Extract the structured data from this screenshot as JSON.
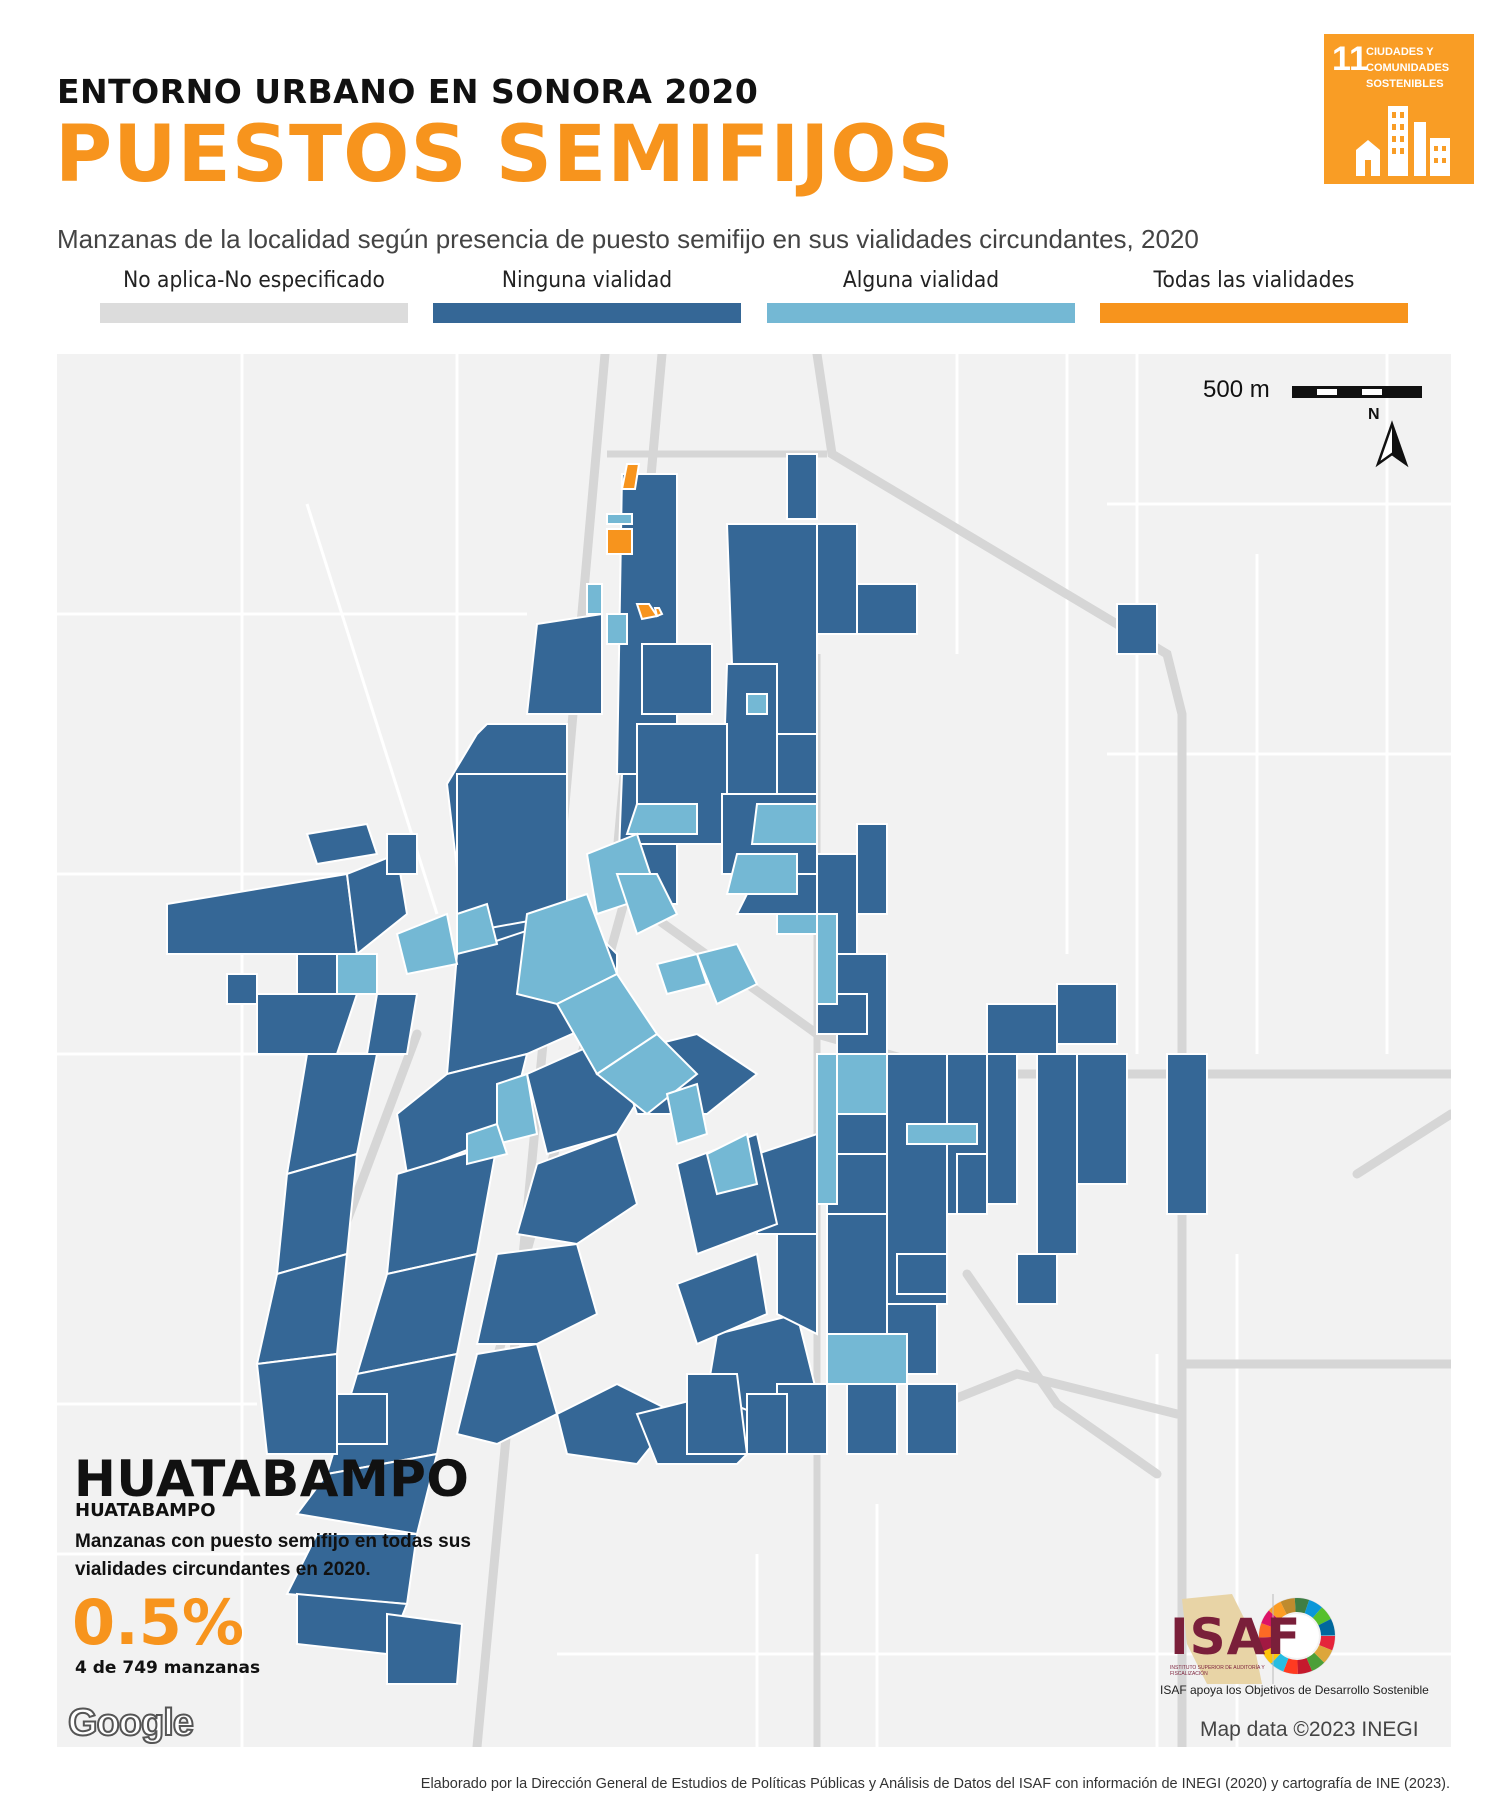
{
  "header": {
    "kicker": "ENTORNO URBANO EN SONORA 2020",
    "title": "PUESTOS SEMIFIJOS",
    "subtitle": "Manzanas de la localidad según presencia de puesto semifijo en sus vialidades circundantes, 2020"
  },
  "sdg_badge": {
    "number": "11",
    "text": "CIUDADES Y COMUNIDADES SOSTENIBLES",
    "color": "#f99d25"
  },
  "legend": [
    {
      "label": "No aplica-No especificado",
      "color": "#dcdcdc"
    },
    {
      "label": "Ninguna vialidad",
      "color": "#356796"
    },
    {
      "label": "Alguna vialidad",
      "color": "#74b8d4"
    },
    {
      "label": "Todas las vialidades",
      "color": "#f7941d"
    }
  ],
  "map": {
    "scale_label": "500 m",
    "north_label": "N",
    "attribution": "Map data ©2023 INEGI",
    "google_logo": "Google"
  },
  "summary": {
    "localidad": "HUATABAMPO",
    "municipio": "HUATABAMPO",
    "indicator": "Manzanas con puesto semifijo en todas sus vialidades circundantes en 2020.",
    "percentage": "0.5%",
    "count_text": "4 de 749 manzanas"
  },
  "logos": {
    "isaf_word": "ISAF",
    "isaf_small": "INSTITUTO SUPERIOR DE AUDITORÍA Y FISCALIZACIÓN",
    "isaf_tagline": "ISAF apoya los Objetivos de Desarrollo Sostenible"
  },
  "footer": "Elaborado por la Dirección General de Estudios de Políticas Públicas y Análisis de Datos del ISAF con información de INEGI (2020) y cartografía de INE (2023)."
}
